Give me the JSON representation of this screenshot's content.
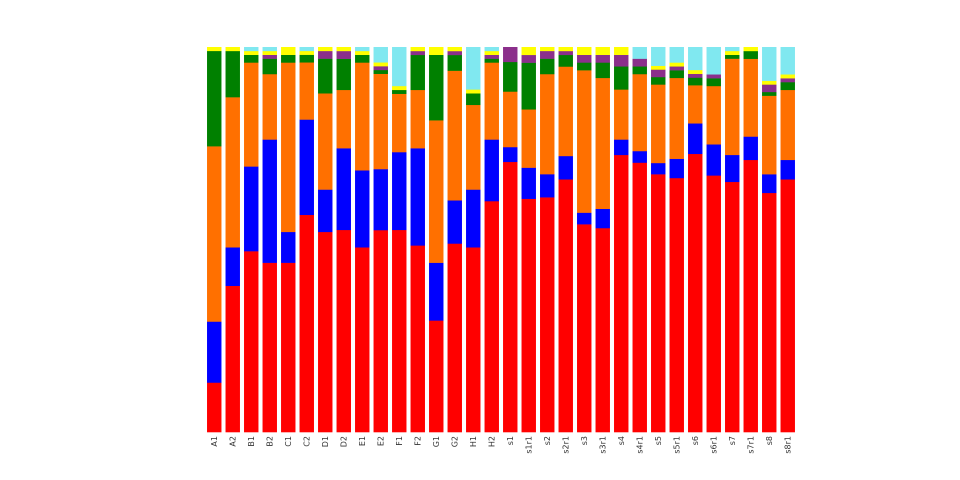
{
  "chart_data": {
    "type": "bar",
    "stacked": true,
    "normalized": true,
    "title": "",
    "xlabel": "",
    "ylabel": "",
    "ylim": [
      0,
      1
    ],
    "grid": false,
    "axes_visible": false,
    "categories": [
      "A1",
      "A2",
      "B1",
      "B2",
      "C1",
      "C2",
      "D1",
      "D2",
      "E1",
      "E2",
      "F1",
      "F2",
      "G1",
      "G2",
      "H1",
      "H2",
      "s1",
      "s1r1",
      "s2",
      "s2r1",
      "s3",
      "s3r1",
      "s4",
      "s4r1",
      "s5",
      "s5r1",
      "s6",
      "s6r1",
      "s7",
      "s7r1",
      "s8",
      "s8r1"
    ],
    "series": [
      {
        "color": "#ff0000",
        "values": [
          0.13,
          0.38,
          0.47,
          0.44,
          0.44,
          0.57,
          0.52,
          0.52,
          0.48,
          0.53,
          0.52,
          0.48,
          0.29,
          0.48,
          0.48,
          0.6,
          0.73,
          0.6,
          0.61,
          0.65,
          0.54,
          0.53,
          0.72,
          0.7,
          0.69,
          0.66,
          0.73,
          0.66,
          0.65,
          0.7,
          0.64,
          0.65
        ]
      },
      {
        "color": "#0000ff",
        "values": [
          0.16,
          0.1,
          0.22,
          0.32,
          0.08,
          0.25,
          0.11,
          0.21,
          0.2,
          0.16,
          0.2,
          0.25,
          0.15,
          0.11,
          0.15,
          0.16,
          0.04,
          0.08,
          0.06,
          0.06,
          0.03,
          0.05,
          0.04,
          0.03,
          0.03,
          0.05,
          0.08,
          0.08,
          0.07,
          0.06,
          0.05,
          0.05
        ]
      },
      {
        "color": "#ff7000",
        "values": [
          0.46,
          0.39,
          0.27,
          0.17,
          0.44,
          0.15,
          0.25,
          0.15,
          0.28,
          0.25,
          0.15,
          0.15,
          0.37,
          0.33,
          0.22,
          0.2,
          0.15,
          0.15,
          0.26,
          0.23,
          0.37,
          0.34,
          0.13,
          0.2,
          0.21,
          0.21,
          0.1,
          0.15,
          0.25,
          0.2,
          0.21,
          0.18
        ]
      },
      {
        "color": "#008000",
        "values": [
          0.25,
          0.12,
          0.02,
          0.04,
          0.02,
          0.02,
          0.09,
          0.08,
          0.02,
          0.01,
          0.01,
          0.09,
          0.17,
          0.04,
          0.03,
          0.01,
          0.08,
          0.12,
          0.04,
          0.03,
          0.02,
          0.04,
          0.06,
          0.02,
          0.02,
          0.02,
          0.02,
          0.02,
          0.01,
          0.02,
          0.01,
          0.02
        ]
      },
      {
        "color": "#8b2f8b",
        "values": [
          0.0,
          0.0,
          0.0,
          0.01,
          0.0,
          0.0,
          0.02,
          0.02,
          0.0,
          0.01,
          0.0,
          0.01,
          0.0,
          0.01,
          0.0,
          0.01,
          0.04,
          0.02,
          0.02,
          0.01,
          0.02,
          0.02,
          0.03,
          0.02,
          0.02,
          0.01,
          0.01,
          0.01,
          0.0,
          0.0,
          0.02,
          0.01
        ]
      },
      {
        "color": "#ffff00",
        "values": [
          0.01,
          0.01,
          0.01,
          0.01,
          0.02,
          0.01,
          0.01,
          0.01,
          0.01,
          0.01,
          0.01,
          0.01,
          0.02,
          0.01,
          0.01,
          0.01,
          0.0,
          0.02,
          0.01,
          0.01,
          0.02,
          0.02,
          0.02,
          0.0,
          0.01,
          0.01,
          0.01,
          0.0,
          0.01,
          0.01,
          0.01,
          0.01
        ]
      },
      {
        "color": "#80e8f0",
        "values": [
          0.0,
          0.0,
          0.01,
          0.01,
          0.0,
          0.01,
          0.0,
          0.0,
          0.01,
          0.04,
          0.1,
          0.0,
          0.0,
          0.0,
          0.11,
          0.01,
          0.0,
          0.0,
          0.0,
          0.0,
          0.0,
          0.0,
          0.0,
          0.03,
          0.05,
          0.04,
          0.06,
          0.07,
          0.01,
          0.0,
          0.09,
          0.07
        ]
      }
    ]
  }
}
